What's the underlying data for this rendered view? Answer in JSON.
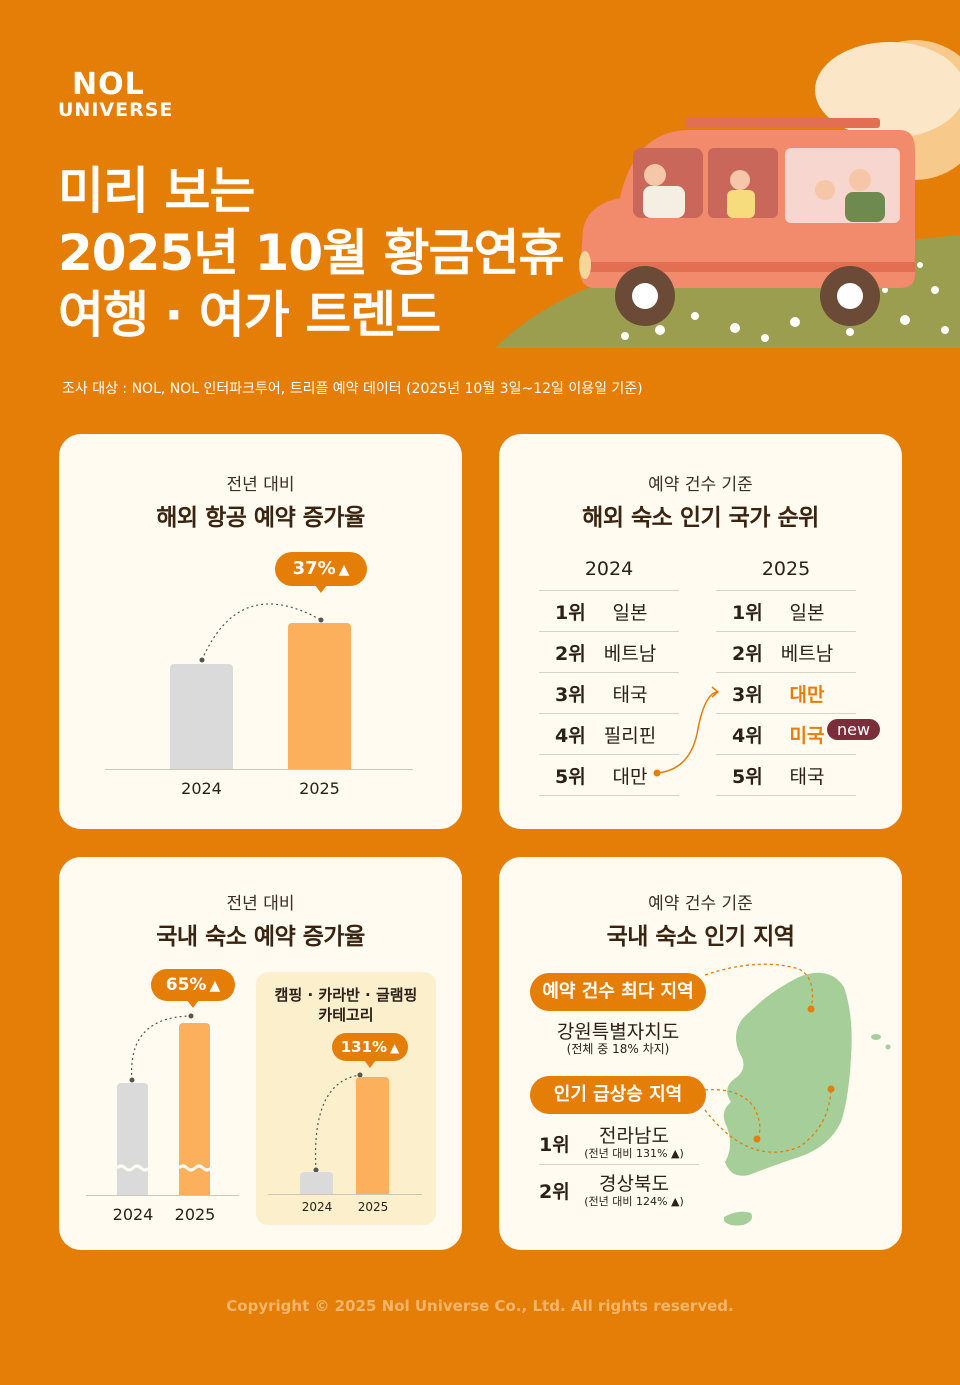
{
  "brand": {
    "line1": "NOL",
    "line2": "UNIVERSE"
  },
  "title": {
    "line1": "미리 보는",
    "line2": "2025년 10월 황금연휴",
    "line3": "여행 · 여가 트렌드"
  },
  "survey": "조사 대상 : NOL, NOL 인터파크투어, 트리플 예약 데이터 (2025년 10월 3일~12일 이용일 기준)",
  "colors": {
    "background": "#E57E06",
    "card": "#FFFBF1",
    "bar_prev": "#DADADA",
    "bar_current": "#FDB05C",
    "accent": "#E57E06",
    "new_badge": "#7A2E3A",
    "map": "#A6CE98"
  },
  "card1": {
    "sub": "전년 대비",
    "title": "해외 항공 예약 증가율",
    "badge": "37%"
  },
  "card2": {
    "sub": "예약 건수 기준",
    "title": "해외 숙소 인기 국가 순위",
    "col2024": {
      "year": "2024",
      "rows": [
        {
          "rank": "1위",
          "country": "일본"
        },
        {
          "rank": "2위",
          "country": "베트남"
        },
        {
          "rank": "3위",
          "country": "태국"
        },
        {
          "rank": "4위",
          "country": "필리핀"
        },
        {
          "rank": "5위",
          "country": "대만"
        }
      ]
    },
    "col2025": {
      "year": "2025",
      "rows": [
        {
          "rank": "1위",
          "country": "일본"
        },
        {
          "rank": "2위",
          "country": "베트남"
        },
        {
          "rank": "3위",
          "country": "대만"
        },
        {
          "rank": "4위",
          "country": "미국"
        },
        {
          "rank": "5위",
          "country": "태국"
        }
      ]
    },
    "new_label": "new"
  },
  "card3": {
    "sub": "전년 대비",
    "title": "국내 숙소 예약 증가율",
    "badge": "65%",
    "camp_title1": "캠핑 · 카라반 · 글램핑",
    "camp_title2": "카테고리",
    "camp_badge": "131%"
  },
  "card4": {
    "sub": "예약 건수 기준",
    "title": "국내 숙소 인기 지역",
    "pill1": "예약 건수 최다 지역",
    "region1": "강원특별자치도",
    "region1_note": "(전체 중 18% 차지)",
    "pill2": "인기 급상승 지역",
    "rise": [
      {
        "rank": "1위",
        "region": "전라남도",
        "note": "(전년 대비 131%"
      },
      {
        "rank": "2위",
        "region": "경상북도",
        "note": "(전년 대비 124%"
      }
    ],
    "note_close": ")"
  },
  "copyright": "Copyright © 2025 Nol Universe Co., Ltd. All rights reserved.",
  "icons": {
    "up_arrow": "up-arrow-icon",
    "dotted_arrow": "dotted-arrow-icon"
  },
  "chart_data": [
    {
      "type": "bar",
      "title": "해외 항공 예약 증가율",
      "categories": [
        "2024",
        "2025"
      ],
      "values": [
        100,
        137
      ],
      "annotations": [
        "37%"
      ]
    },
    {
      "type": "table",
      "title": "해외 숙소 인기 국가 순위",
      "columns": [
        "2024",
        "2025"
      ],
      "rows": [
        [
          "일본",
          "일본"
        ],
        [
          "베트남",
          "베트남"
        ],
        [
          "태국",
          "대만"
        ],
        [
          "필리핀",
          "미국"
        ],
        [
          "대만",
          "태국"
        ]
      ]
    },
    {
      "type": "bar",
      "title": "국내 숙소 예약 증가율",
      "categories": [
        "2024",
        "2025"
      ],
      "values": [
        100,
        165
      ],
      "annotations": [
        "65%"
      ]
    },
    {
      "type": "bar",
      "title": "캠핑 · 카라반 · 글램핑 카테고리",
      "categories": [
        "2024",
        "2025"
      ],
      "values": [
        100,
        231
      ],
      "annotations": [
        "131%"
      ]
    }
  ]
}
